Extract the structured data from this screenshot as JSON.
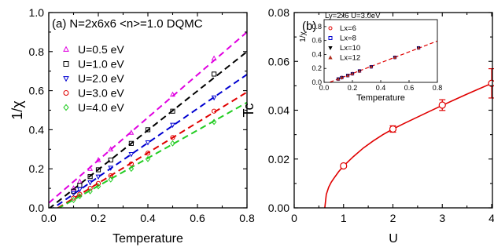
{
  "chart_data": [
    {
      "type": "scatter",
      "panel_label": "(a)",
      "title": "N=2x6x6 <n>=1.0 DQMC",
      "xlabel": "Temperature",
      "ylabel": "1/χ",
      "xlim": [
        0,
        0.8
      ],
      "ylim": [
        0,
        1.0
      ],
      "xticks": [
        "0.0",
        "0.2",
        "0.4",
        "0.6",
        "0.8"
      ],
      "yticks": [
        "0.0",
        "0.2",
        "0.4",
        "0.6",
        "0.8",
        "1.0"
      ],
      "legend_position": "top-left",
      "series": [
        {
          "name": "U=0.5 eV",
          "color": "#e000e0",
          "marker": "triangle-up",
          "fit_line": {
            "slope": 1.094,
            "intercept": 0.025
          },
          "points": [
            [
              0.1,
              0.1
            ],
            [
              0.125,
              0.135
            ],
            [
              0.167,
              0.2
            ],
            [
              0.2,
              0.245
            ],
            [
              0.25,
              0.3
            ],
            [
              0.333,
              0.385
            ],
            [
              0.5,
              0.58
            ],
            [
              0.667,
              0.765
            ]
          ]
        },
        {
          "name": "U=1.0 eV",
          "color": "#000000",
          "marker": "square",
          "fit_line": {
            "slope": 1.006,
            "intercept": -0.005
          },
          "points": [
            [
              0.1,
              0.085
            ],
            [
              0.125,
              0.115
            ],
            [
              0.167,
              0.16
            ],
            [
              0.2,
              0.195
            ],
            [
              0.25,
              0.245
            ],
            [
              0.333,
              0.33
            ],
            [
              0.4,
              0.4
            ],
            [
              0.5,
              0.495
            ],
            [
              0.667,
              0.685
            ]
          ]
        },
        {
          "name": "U=2.0 eV",
          "color": "#0000d0",
          "marker": "triangle-down",
          "fit_line": {
            "slope": 0.875,
            "intercept": -0.017
          },
          "points": [
            [
              0.1,
              0.075
            ],
            [
              0.125,
              0.095
            ],
            [
              0.167,
              0.13
            ],
            [
              0.2,
              0.16
            ],
            [
              0.25,
              0.205
            ],
            [
              0.333,
              0.275
            ],
            [
              0.4,
              0.335
            ],
            [
              0.5,
              0.425
            ],
            [
              0.667,
              0.565
            ]
          ]
        },
        {
          "name": "U=3.0 eV",
          "color": "#e00000",
          "marker": "circle",
          "fit_line": {
            "slope": 0.777,
            "intercept": -0.029
          },
          "points": [
            [
              0.1,
              0.05
            ],
            [
              0.125,
              0.07
            ],
            [
              0.167,
              0.1
            ],
            [
              0.2,
              0.125
            ],
            [
              0.25,
              0.165
            ],
            [
              0.333,
              0.225
            ],
            [
              0.4,
              0.28
            ],
            [
              0.5,
              0.36
            ],
            [
              0.667,
              0.495
            ]
          ]
        },
        {
          "name": "U=4.0 eV",
          "color": "#22cc22",
          "marker": "diamond",
          "fit_line": {
            "slope": 0.712,
            "intercept": -0.03
          },
          "points": [
            [
              0.1,
              0.04
            ],
            [
              0.125,
              0.06
            ],
            [
              0.167,
              0.085
            ],
            [
              0.2,
              0.11
            ],
            [
              0.25,
              0.145
            ],
            [
              0.333,
              0.2
            ],
            [
              0.4,
              0.25
            ],
            [
              0.5,
              0.33
            ],
            [
              0.667,
              0.44
            ]
          ]
        }
      ]
    },
    {
      "type": "line",
      "panel_label": "(b)",
      "xlabel": "U",
      "ylabel": "Tc",
      "xlim": [
        0,
        4
      ],
      "ylim": [
        0,
        0.08
      ],
      "xticks": [
        "0",
        "1",
        "2",
        "3",
        "4"
      ],
      "yticks": [
        "0.00",
        "0.02",
        "0.04",
        "0.06",
        "0.08"
      ],
      "series": [
        {
          "color": "#e00000",
          "marker": "circle",
          "x": [
            1,
            2,
            3,
            4
          ],
          "y": [
            0.0172,
            0.0323,
            0.0421,
            0.051
          ],
          "yerr": [
            0.0005,
            0.0013,
            0.0022,
            0.006
          ]
        },
        {
          "color": "#e00000",
          "marker": "none",
          "x": [
            0.62,
            0.65,
            0.7,
            0.75,
            0.8,
            0.9,
            1.0,
            1.2,
            1.4,
            1.6,
            1.8,
            2.0,
            2.25,
            2.5,
            2.75,
            3.0,
            3.25,
            3.5,
            3.75,
            4.0
          ],
          "y": [
            0.0,
            0.0055,
            0.0085,
            0.0105,
            0.012,
            0.0148,
            0.0172,
            0.021,
            0.0245,
            0.0274,
            0.03,
            0.0323,
            0.0348,
            0.0372,
            0.0396,
            0.042,
            0.0443,
            0.0466,
            0.0488,
            0.051
          ]
        }
      ],
      "inset": {
        "title": "Ly=2x6 U=3.0eV",
        "xlabel": "Temperature",
        "ylabel": "1/χ",
        "xlim": [
          0,
          0.8
        ],
        "ylim": [
          0,
          0.9
        ],
        "xticks": [
          "0.0",
          "0.2",
          "0.4",
          "0.6",
          "0.8"
        ],
        "yticks": [
          "0.0",
          "0.2",
          "0.4",
          "0.6",
          "0.8"
        ],
        "fit_line": {
          "slope": 0.777,
          "intercept": -0.029,
          "color": "#e00000"
        },
        "series": [
          {
            "name": "Lx=6",
            "color": "#e00000",
            "marker": "circle",
            "points": [
              [
                0.1,
                0.05
              ],
              [
                0.125,
                0.07
              ],
              [
                0.167,
                0.1
              ],
              [
                0.2,
                0.125
              ],
              [
                0.25,
                0.165
              ],
              [
                0.333,
                0.225
              ],
              [
                0.5,
                0.36
              ],
              [
                0.667,
                0.495
              ]
            ]
          },
          {
            "name": "Lx=8",
            "color": "#0000d0",
            "marker": "square",
            "points": [
              [
                0.1,
                0.048
              ],
              [
                0.125,
                0.068
              ],
              [
                0.167,
                0.098
              ],
              [
                0.2,
                0.123
              ],
              [
                0.25,
                0.163
              ],
              [
                0.333,
                0.223
              ],
              [
                0.5,
                0.358
              ],
              [
                0.667,
                0.494
              ]
            ]
          },
          {
            "name": "Lx=10",
            "color": "#000000",
            "marker": "triangle-down",
            "points": [
              [
                0.1,
                0.047
              ],
              [
                0.125,
                0.067
              ],
              [
                0.167,
                0.097
              ],
              [
                0.2,
                0.122
              ],
              [
                0.25,
                0.162
              ],
              [
                0.333,
                0.222
              ],
              [
                0.5,
                0.357
              ],
              [
                0.667,
                0.493
              ]
            ]
          },
          {
            "name": "Lx=12",
            "color": "#b03020",
            "marker": "triangle-up",
            "points": [
              [
                0.1,
                0.046
              ],
              [
                0.125,
                0.066
              ],
              [
                0.167,
                0.096
              ],
              [
                0.2,
                0.121
              ],
              [
                0.25,
                0.161
              ],
              [
                0.333,
                0.221
              ],
              [
                0.5,
                0.356
              ],
              [
                0.667,
                0.492
              ]
            ]
          }
        ]
      }
    }
  ]
}
